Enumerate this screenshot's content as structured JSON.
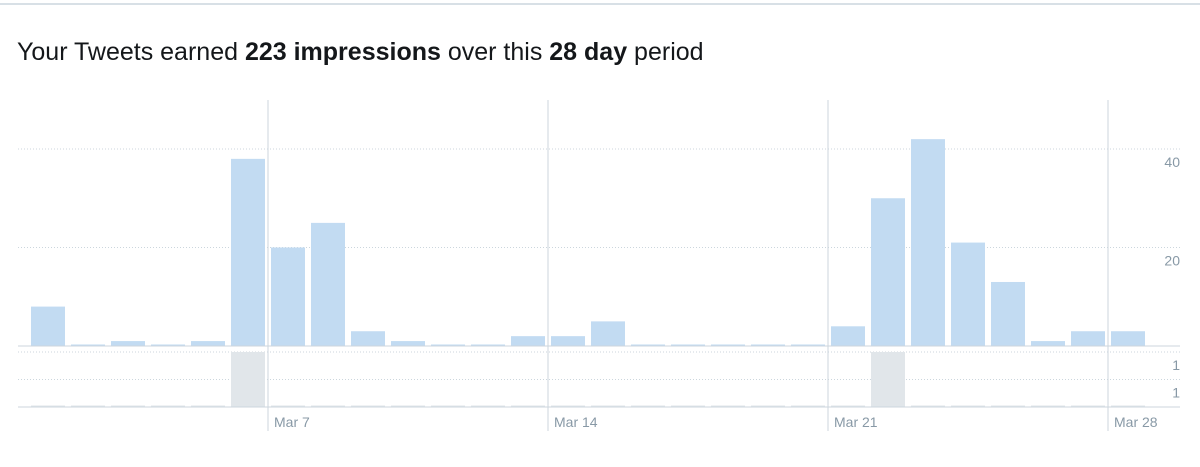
{
  "title_parts": [
    {
      "text": "Your Tweets earned ",
      "bold": false
    },
    {
      "text": "223 impressions",
      "bold": true
    },
    {
      "text": " over this ",
      "bold": false
    },
    {
      "text": "28 day",
      "bold": true
    },
    {
      "text": " period",
      "bold": false
    }
  ],
  "chart_data": [
    {
      "type": "bar",
      "color": "#c2dbf2",
      "categories": [
        null,
        null,
        null,
        null,
        null,
        null,
        "Mar 7",
        null,
        null,
        null,
        null,
        null,
        null,
        "Mar 14",
        null,
        null,
        null,
        null,
        null,
        null,
        "Mar 21",
        null,
        null,
        null,
        null,
        null,
        null,
        "Mar 28"
      ],
      "values": [
        8,
        0,
        1,
        0,
        1,
        38,
        20,
        25,
        3,
        1,
        0,
        0,
        2,
        2,
        5,
        0,
        0,
        0,
        0,
        0,
        4,
        30,
        42,
        21,
        13,
        1,
        3,
        3
      ],
      "ylim": [
        0,
        44
      ],
      "yticks": [
        20,
        40
      ],
      "grid": true
    },
    {
      "type": "bar",
      "color": "#e1e6ea",
      "values": [
        0,
        0,
        0,
        0,
        0,
        1,
        0,
        0,
        0,
        0,
        0,
        0,
        0,
        0,
        0,
        0,
        0,
        0,
        0,
        0,
        0,
        1,
        0,
        0,
        0,
        0,
        0,
        0
      ],
      "ylim": [
        0,
        1
      ],
      "yticks": [
        1,
        {
          "value": 0.5,
          "label": "1"
        }
      ],
      "grid": true
    }
  ]
}
